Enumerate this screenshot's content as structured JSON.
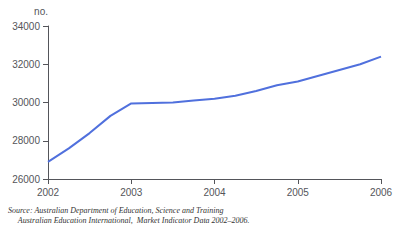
{
  "chart_data": {
    "type": "line",
    "ylabel": "no.",
    "annotations": [
      "Source: Australian Department of Education, Science and Training",
      "     Australian Education International,  Market Indicator Data 2002–2006."
    ],
    "x": [
      2002.0,
      2002.25,
      2002.5,
      2002.75,
      2003.0,
      2003.25,
      2003.5,
      2003.75,
      2004.0,
      2004.25,
      2004.5,
      2004.75,
      2005.0,
      2005.25,
      2005.5,
      2005.75,
      2006.0
    ],
    "values": [
      26900,
      27600,
      28400,
      29300,
      29950,
      29980,
      30000,
      30100,
      30200,
      30350,
      30600,
      30900,
      31100,
      31400,
      31700,
      32000,
      32400
    ],
    "xlim": [
      2002,
      2006
    ],
    "xticks": [
      2002,
      2003,
      2004,
      2005,
      2006
    ],
    "ylim": [
      26000,
      34000
    ],
    "yticks": [
      26000,
      28000,
      30000,
      32000,
      34000
    ],
    "grid": false
  }
}
